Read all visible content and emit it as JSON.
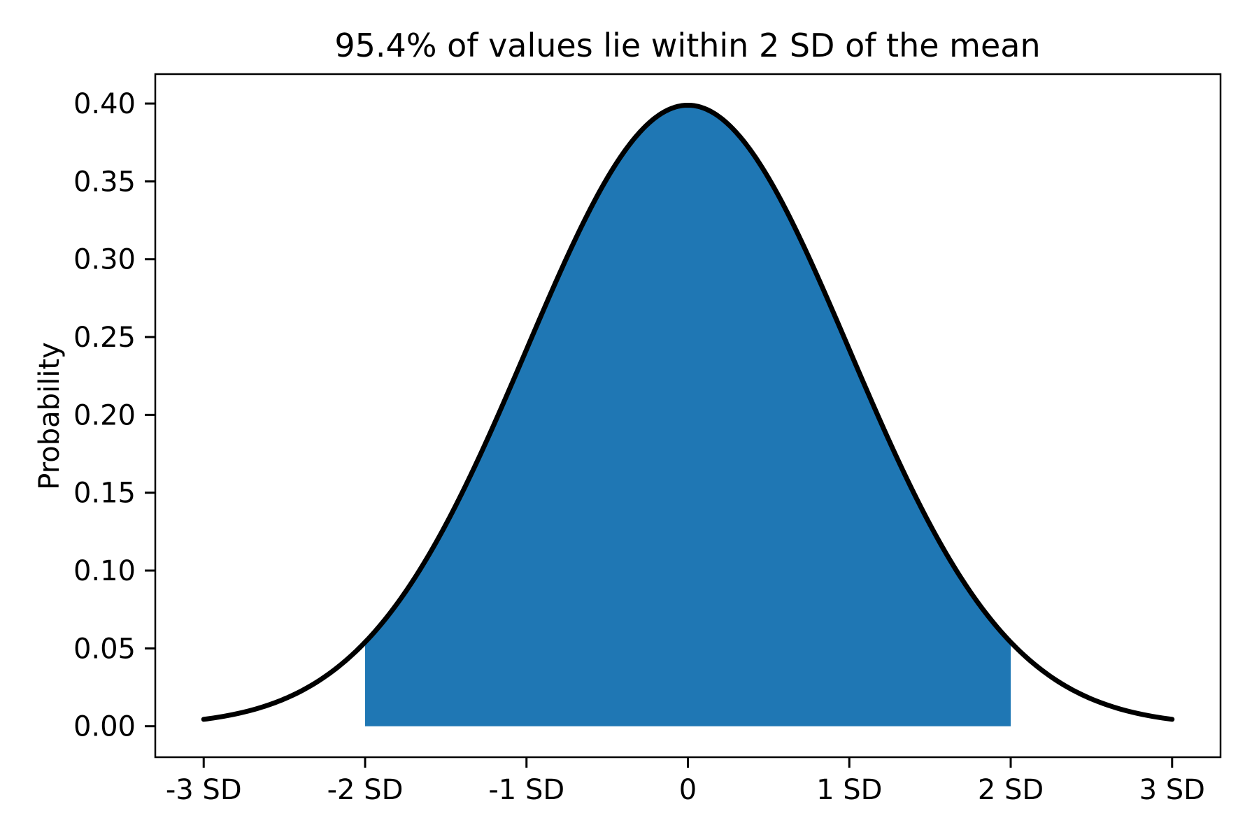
{
  "chart_data": {
    "type": "area",
    "title": "95.4% of values lie within 2 SD of the mean",
    "xlabel": "",
    "ylabel": "Probability",
    "xlim": [
      -3.3,
      3.3
    ],
    "ylim": [
      -0.0199,
      0.4189
    ],
    "grid": false,
    "legend": null,
    "x_ticks": [
      {
        "value": -3,
        "label": "-3 SD"
      },
      {
        "value": -2,
        "label": "-2 SD"
      },
      {
        "value": -1,
        "label": "-1 SD"
      },
      {
        "value": 0,
        "label": "0"
      },
      {
        "value": 1,
        "label": "1 SD"
      },
      {
        "value": 2,
        "label": "2 SD"
      },
      {
        "value": 3,
        "label": "3 SD"
      }
    ],
    "y_ticks": [
      {
        "value": 0.0,
        "label": "0.00"
      },
      {
        "value": 0.05,
        "label": "0.05"
      },
      {
        "value": 0.1,
        "label": "0.10"
      },
      {
        "value": 0.15,
        "label": "0.15"
      },
      {
        "value": 0.2,
        "label": "0.20"
      },
      {
        "value": 0.25,
        "label": "0.25"
      },
      {
        "value": 0.3,
        "label": "0.30"
      },
      {
        "value": 0.35,
        "label": "0.35"
      },
      {
        "value": 0.4,
        "label": "0.40"
      }
    ],
    "curve": {
      "name": "standard-normal-pdf",
      "mean": 0,
      "sigma": 1,
      "x_range": [
        -3,
        3
      ],
      "peak_value": 0.3989,
      "points": [
        {
          "x": -3.0,
          "y": 0.0044
        },
        {
          "x": -2.5,
          "y": 0.0175
        },
        {
          "x": -2.0,
          "y": 0.054
        },
        {
          "x": -1.5,
          "y": 0.1295
        },
        {
          "x": -1.0,
          "y": 0.242
        },
        {
          "x": -0.5,
          "y": 0.3521
        },
        {
          "x": 0.0,
          "y": 0.3989
        },
        {
          "x": 0.5,
          "y": 0.3521
        },
        {
          "x": 1.0,
          "y": 0.242
        },
        {
          "x": 1.5,
          "y": 0.1295
        },
        {
          "x": 2.0,
          "y": 0.054
        },
        {
          "x": 2.5,
          "y": 0.0175
        },
        {
          "x": 3.0,
          "y": 0.0044
        }
      ]
    },
    "shaded_region": {
      "x_from": -2,
      "x_to": 2,
      "coverage_percent": 95.4,
      "fill_color": "#1f77b4"
    },
    "line_color": "#000000",
    "axes_color": "#000000"
  }
}
